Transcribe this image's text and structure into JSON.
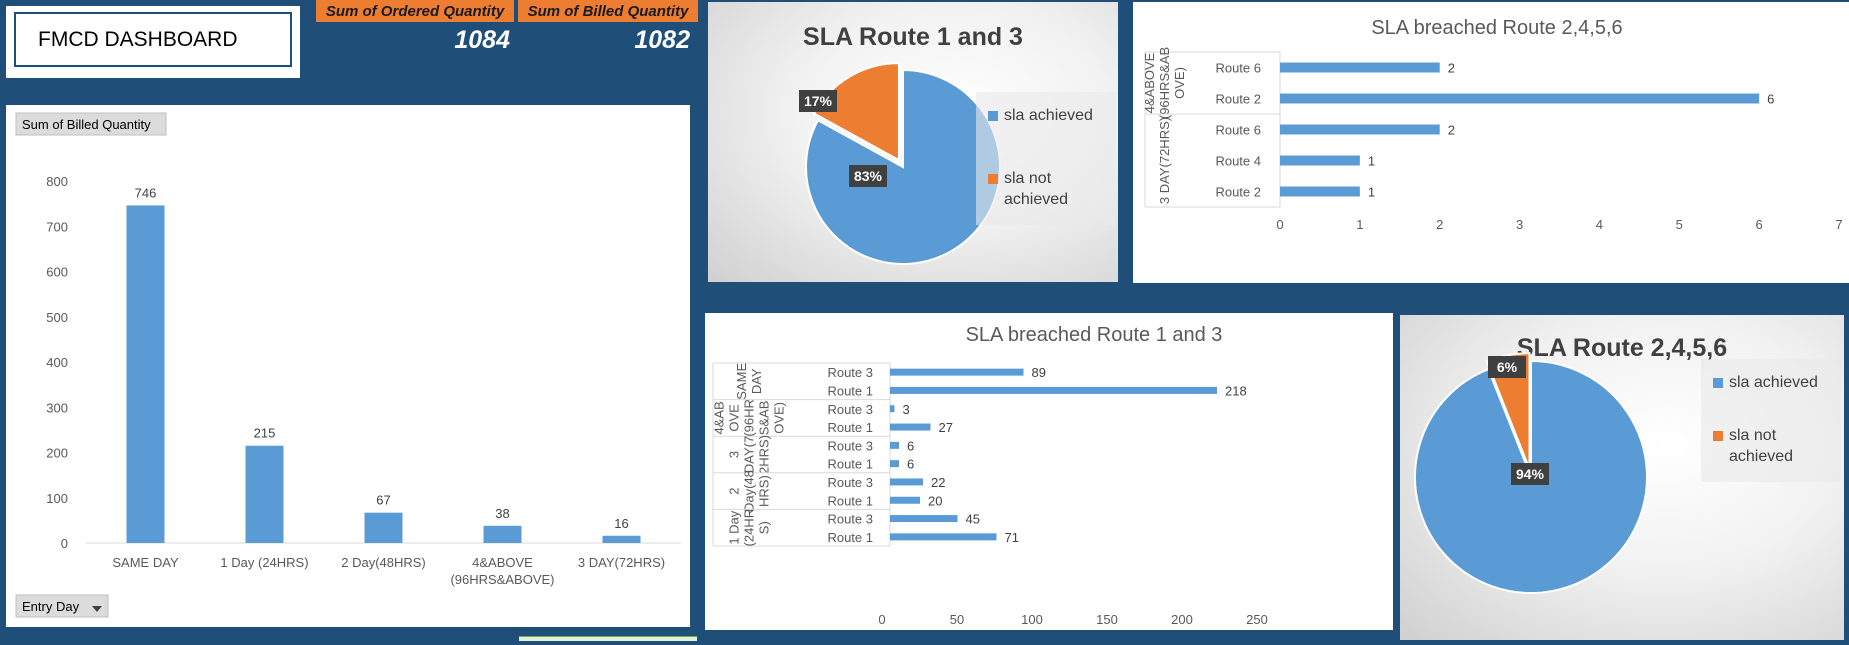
{
  "dashboard": {
    "title": "FMCD DASHBOARD",
    "kpi": {
      "ordered_label": "Sum of Ordered Quantity",
      "billed_label": "Sum of Billed Quantity",
      "ordered_value": "1084",
      "billed_value": "1082"
    },
    "colors": {
      "background": "#1f4e79",
      "blue": "#5b9bd5",
      "orange": "#ed7d31"
    }
  },
  "chart_data": [
    {
      "id": "billed_by_entry_day",
      "type": "bar",
      "field_button": "Sum of Billed Quantity",
      "filter_button": "Entry Day",
      "categories": [
        "SAME DAY",
        "1 Day (24HRS)",
        "2 Day(48HRS)",
        "4&ABOVE (96HRS&ABOVE)",
        "3 DAY(72HRS)"
      ],
      "values": [
        746,
        215,
        67,
        38,
        16
      ],
      "ylim": [
        0,
        800
      ],
      "yticks": [
        0,
        100,
        200,
        300,
        400,
        500,
        600,
        700,
        800
      ]
    },
    {
      "id": "sla_route_1_3",
      "type": "pie",
      "title": "SLA Route 1 and 3",
      "labels": [
        "sla achieved",
        "sla not achieved"
      ],
      "values": [
        83,
        17
      ],
      "value_labels": [
        "83%",
        "17%"
      ],
      "colors": [
        "#5b9bd5",
        "#ed7d31"
      ],
      "legend": "right"
    },
    {
      "id": "breached_route_2456",
      "type": "bar",
      "orientation": "horizontal",
      "title": "SLA breached Route 2,4,5,6",
      "groups": [
        {
          "name": "4&ABOVE (96HRS&ABOVE)",
          "name_lines": [
            "4&ABOVE",
            "(96HRS&AB",
            "OVE)"
          ],
          "categories": [
            "Route 6",
            "Route 2"
          ],
          "values": [
            2,
            6
          ]
        },
        {
          "name": "3 DAY(72HRS)",
          "name_lines": [
            "3 DAY(72HRS)"
          ],
          "categories": [
            "Route 6",
            "Route 4",
            "Route 2"
          ],
          "values": [
            2,
            1,
            1
          ]
        }
      ],
      "xlim": [
        0,
        7
      ],
      "xticks": [
        0,
        1,
        2,
        3,
        4,
        5,
        6,
        7
      ]
    },
    {
      "id": "breached_route_1_3",
      "type": "bar",
      "orientation": "horizontal",
      "title": "SLA breached Route 1 and 3",
      "groups": [
        {
          "name": "SAME DAY",
          "name_lines": [
            "SAME",
            "DAY"
          ],
          "categories": [
            "Route 3",
            "Route 1"
          ],
          "values": [
            89,
            218
          ]
        },
        {
          "name": "4&ABOVE (96HRS&ABOVE)",
          "name_lines": [
            "4&AB",
            "OVE",
            "(96HR",
            "S&AB",
            "OVE)"
          ],
          "categories": [
            "Route 3",
            "Route 1"
          ],
          "values": [
            3,
            27
          ]
        },
        {
          "name": "3 DAY(72HRS)",
          "name_lines": [
            "3",
            "DAY(7",
            "2HRS)"
          ],
          "categories": [
            "Route 3",
            "Route 1"
          ],
          "values": [
            6,
            6
          ]
        },
        {
          "name": "2 Day(48HRS)",
          "name_lines": [
            "2",
            "Day(48",
            "HRS)"
          ],
          "categories": [
            "Route 3",
            "Route 1"
          ],
          "values": [
            22,
            20
          ]
        },
        {
          "name": "1 Day (24HRS)",
          "name_lines": [
            "1 Day",
            "(24HR",
            "S)"
          ],
          "categories": [
            "Route 3",
            "Route 1"
          ],
          "values": [
            45,
            71
          ]
        }
      ],
      "xlim": [
        0,
        250
      ],
      "xticks": [
        0,
        50,
        100,
        150,
        200,
        250
      ]
    },
    {
      "id": "sla_route_2456",
      "type": "pie",
      "title": "SLA Route 2,4,5,6",
      "labels": [
        "sla achieved",
        "sla not achieved"
      ],
      "values": [
        94,
        6
      ],
      "value_labels": [
        "94%",
        "6%"
      ],
      "colors": [
        "#5b9bd5",
        "#ed7d31"
      ],
      "legend": "right"
    }
  ]
}
